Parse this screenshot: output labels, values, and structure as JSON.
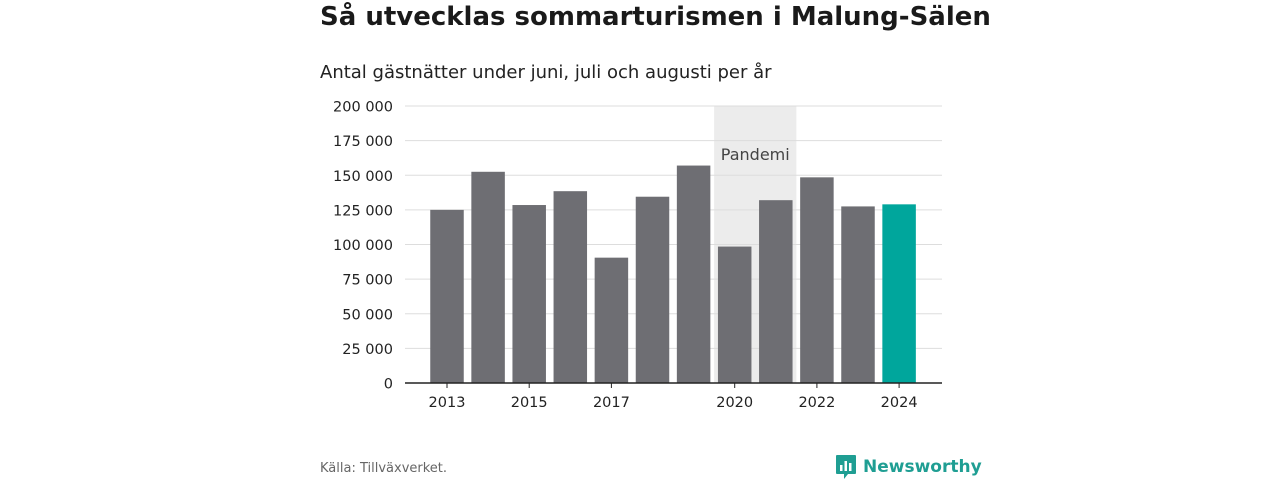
{
  "header": {
    "title": "Så utvecklas sommarturismen i Malung-Sälen",
    "subtitle": "Antal gästnätter under juni, juli och augusti per år"
  },
  "footer": {
    "source": "Källa: Tillväxverket.",
    "brand": "Newsworthy",
    "brand_icon": "bar-chart-logo-icon"
  },
  "colors": {
    "bar": "#6e6e73",
    "highlight": "#00a69c",
    "band": "#ececec",
    "grid": "#dddddd",
    "axis": "#222222",
    "brand": "#1f9e93"
  },
  "chart_data": {
    "type": "bar",
    "title": "Så utvecklas sommarturismen i Malung-Sälen",
    "subtitle": "Antal gästnätter under juni, juli och augusti per år",
    "categories": [
      "2013",
      "2014",
      "2015",
      "2016",
      "2017",
      "2018",
      "2019",
      "2020",
      "2021",
      "2022",
      "2023",
      "2024"
    ],
    "values": [
      125000,
      152500,
      128500,
      138500,
      90500,
      134500,
      157000,
      98500,
      132000,
      148500,
      127500,
      129000
    ],
    "highlight_category": "2024",
    "x_tick_labels": [
      "2013",
      "2015",
      "2017",
      "2020",
      "2022",
      "2024"
    ],
    "ylim": [
      0,
      200000
    ],
    "y_ticks": [
      0,
      25000,
      50000,
      75000,
      100000,
      125000,
      150000,
      175000,
      200000
    ],
    "y_tick_labels": [
      "0",
      "25 000",
      "50 000",
      "75 000",
      "100 000",
      "125 000",
      "150 000",
      "175 000",
      "200 000"
    ],
    "grid": true,
    "annotation": {
      "label": "Pandemi",
      "from_category": "2020",
      "to_category": "2021"
    },
    "xlabel": "",
    "ylabel": ""
  }
}
